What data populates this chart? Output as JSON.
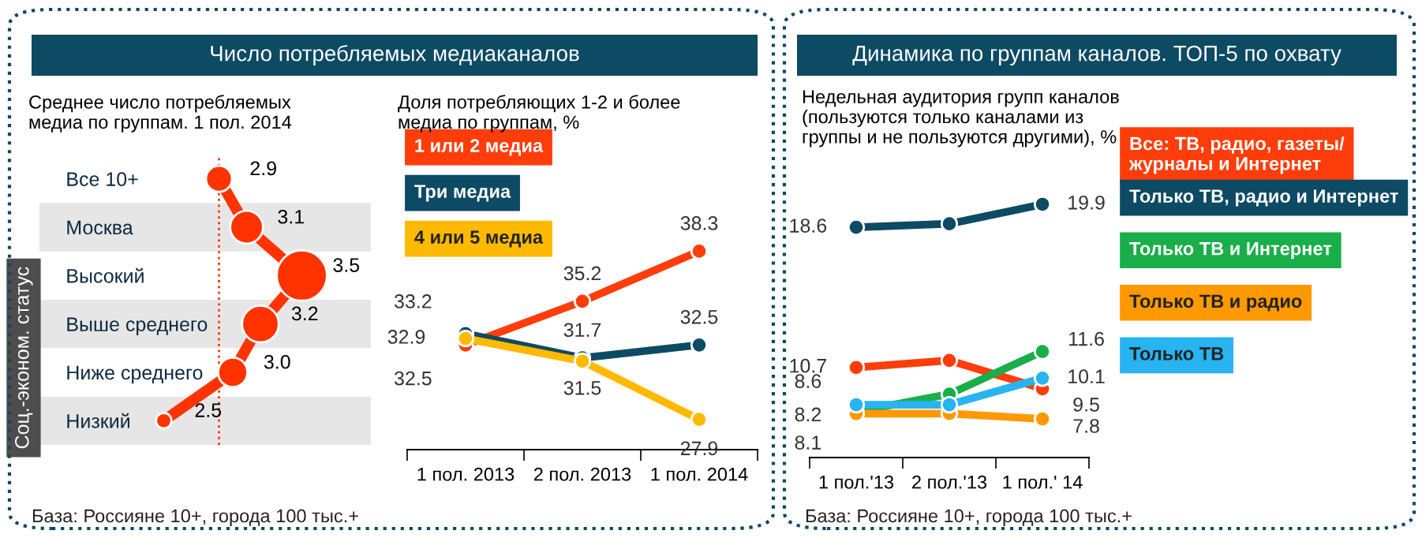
{
  "chart_data": [
    {
      "type": "line",
      "title": "Число потребляемых медиаканалов",
      "subtitle": "Среднее число потребляемых\nмедиа по группам. 1 пол. 2014",
      "ylabel": "Соц.-эконом. статус",
      "orientation": "horizontal",
      "categories": [
        "Все 10+",
        "Москва",
        "Высокий",
        "Выше среднего",
        "Ниже среднего",
        "Низкий"
      ],
      "series": [
        {
          "color": "#ff3300",
          "values": [
            2.9,
            3.1,
            3.5,
            3.2,
            3.0,
            2.5
          ],
          "value_labels": [
            "2.9",
            "3.1",
            "3.5",
            "3.2",
            "3.0",
            "2.5"
          ]
        }
      ],
      "marker": "circle",
      "ref_lines": [
        {
          "axis": "x",
          "value": 2.9,
          "color": "#ff3300",
          "line_style": "dotted"
        }
      ],
      "annotations": [
        "База: Россияне 10+, города 100 тыс.+"
      ]
    },
    {
      "type": "line",
      "title": "Доля потребляющих 1-2 и более\nмедиа по группам, %",
      "categories": [
        "1 пол. 2013",
        "2 пол. 2013",
        "1 пол. 2014"
      ],
      "series": [
        {
          "name": "1 или 2 медиа",
          "color": "#ff3d0a",
          "values": [
            32.5,
            35.2,
            38.3
          ]
        },
        {
          "name": "Три медиа",
          "color": "#0d4a63",
          "values": [
            33.2,
            31.7,
            32.5
          ]
        },
        {
          "name": "4 или 5 медиа",
          "color": "#ffba00",
          "values": [
            32.9,
            31.5,
            27.9
          ]
        }
      ],
      "data_labels": true,
      "marker": "circle",
      "legend": "top left",
      "tick_labels": "x"
    },
    {
      "type": "line",
      "title": "Динамика по группам каналов. ТОП-5 по охвату",
      "subtitle": "Недельная аудитория групп каналов\n(пользуются только каналами из\nгруппы и не пользуются другими), %",
      "categories": [
        "1 пол.'13",
        "2 пол.'13",
        "1 пол.' 14"
      ],
      "series": [
        {
          "name": "Все: ТВ, радио, газеты/\nжурналы и Интернет",
          "color": "#ff3d0a",
          "values": [
            10.7,
            11.1,
            9.5
          ],
          "value_labels": [
            "10.7",
            null,
            "9.5"
          ]
        },
        {
          "name": "Только ТВ, радио и Интернет",
          "color": "#0d4a63",
          "values": [
            18.6,
            18.8,
            19.9
          ],
          "value_labels": [
            "18.6",
            null,
            "19.9"
          ]
        },
        {
          "name": "Только ТВ и Интернет",
          "color": "#1aae4a",
          "values": [
            8.2,
            9.2,
            11.6
          ],
          "value_labels": [
            "8.2",
            null,
            "11.6"
          ]
        },
        {
          "name": "Только ТВ и радио",
          "color": "#ff9900",
          "values": [
            8.1,
            8.1,
            7.8
          ],
          "value_labels": [
            "8.1",
            null,
            "7.8"
          ]
        },
        {
          "name": "Только ТВ",
          "color": "#27b4f0",
          "values": [
            8.6,
            8.6,
            10.1
          ],
          "value_labels": [
            "8.6",
            null,
            "10.1"
          ]
        }
      ],
      "marker": "circle",
      "legend": "right",
      "tick_labels": "x",
      "annotations": [
        "База: Россияне 10+, города 100 тыс.+"
      ]
    }
  ]
}
